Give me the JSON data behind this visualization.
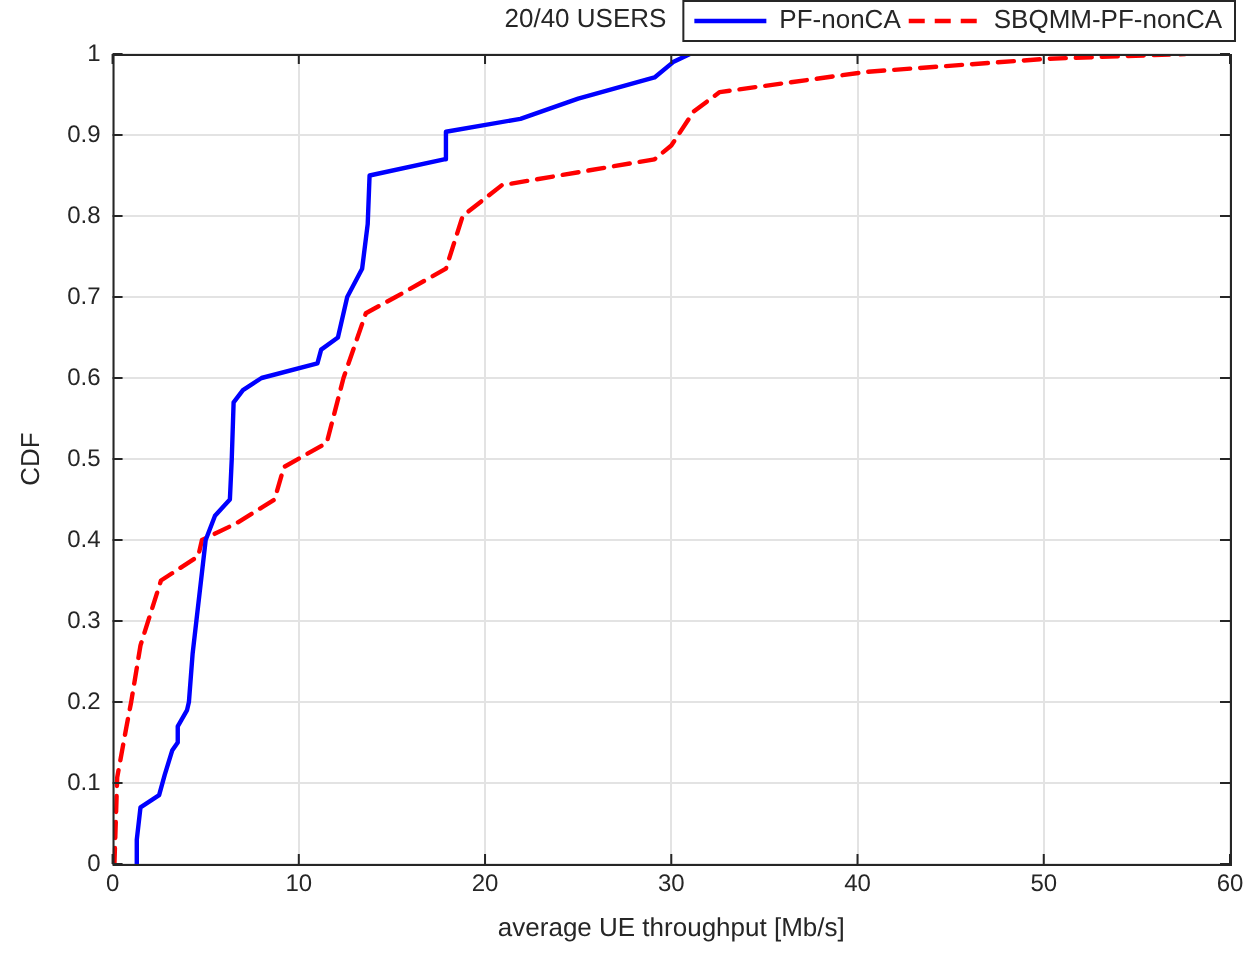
{
  "chart_data": {
    "type": "line",
    "title": "20/40 USERS",
    "xlabel": "average UE throughput [Mb/s]",
    "ylabel": "CDF",
    "xlim": [
      0,
      60
    ],
    "xticks": [
      0,
      10,
      20,
      30,
      40,
      50,
      60
    ],
    "ylim": [
      0,
      1
    ],
    "yticks": [
      0,
      0.1,
      0.2,
      0.3,
      0.4,
      0.5,
      0.6,
      0.7,
      0.8,
      0.9,
      1
    ],
    "grid": true,
    "legend": "top right",
    "marker": "none",
    "series": [
      {
        "name": "PF-nonCA",
        "color": "#0000ff",
        "line_style": "solid",
        "x": [
          1.3,
          1.3,
          1.5,
          2.5,
          2.8,
          3.2,
          3.5,
          3.5,
          4.0,
          4.1,
          4.3,
          4.5,
          4.8,
          5.0,
          5.5,
          6.3,
          6.4,
          6.5,
          7,
          8,
          11.0,
          11.2,
          12.1,
          12.6,
          13.4,
          13.7,
          13.8,
          17.8,
          17.9,
          21.9,
          25,
          29.1,
          30.1,
          31
        ],
        "values": [
          0,
          0.03,
          0.07,
          0.085,
          0.11,
          0.14,
          0.15,
          0.17,
          0.19,
          0.2,
          0.26,
          0.3,
          0.36,
          0.4,
          0.43,
          0.45,
          0.5,
          0.57,
          0.585,
          0.6,
          0.618,
          0.635,
          0.65,
          0.7,
          0.735,
          0.79,
          0.85,
          0.87,
          0.904,
          0.92,
          0.945,
          0.971,
          0.99,
          1
        ]
      },
      {
        "name": "SBQMM-PF-nonCA",
        "color": "#ff0000",
        "line_style": "dashed",
        "x": [
          0.1,
          0.25,
          0.75,
          1.0,
          1.5,
          2.6,
          4.6,
          4.8,
          6.6,
          8.7,
          9.2,
          11.5,
          12.4,
          13.6,
          15.2,
          17.9,
          18.8,
          20.9,
          29.1,
          30,
          31.2,
          32.6,
          40.5,
          50.1,
          57.6
        ],
        "values": [
          0,
          0.107,
          0.17,
          0.2,
          0.27,
          0.35,
          0.38,
          0.4,
          0.42,
          0.45,
          0.49,
          0.52,
          0.6,
          0.68,
          0.7,
          0.735,
          0.8,
          0.838,
          0.87,
          0.887,
          0.929,
          0.953,
          0.978,
          0.994,
          1
        ]
      }
    ]
  }
}
